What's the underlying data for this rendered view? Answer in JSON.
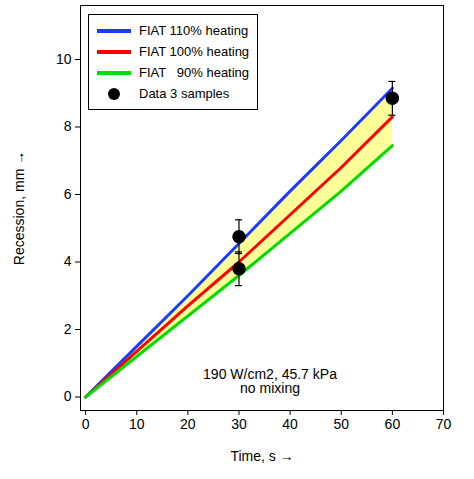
{
  "chart_data": {
    "type": "line",
    "x_label": "Time, s",
    "y_label": "Recession, mm",
    "annotation": [
      "190 W/cm2, 45.7 kPa",
      "no mixing"
    ],
    "x": [
      0,
      10,
      20,
      30,
      40,
      50,
      60
    ],
    "series": [
      {
        "name": "FIAT 110% heating",
        "color": "#1a3cff",
        "values": [
          0,
          1.5,
          3.0,
          4.55,
          6.1,
          7.6,
          9.15
        ]
      },
      {
        "name": "FIAT 100% heating",
        "color": "#ff0000",
        "values": [
          0,
          1.35,
          2.7,
          4.0,
          5.4,
          6.8,
          8.3
        ]
      },
      {
        "name": "FIAT   90% heating",
        "color": "#00dd00",
        "values": [
          0,
          1.2,
          2.4,
          3.6,
          4.85,
          6.1,
          7.45
        ]
      },
      {
        "name": "Data 3 samples",
        "type": "scatter",
        "marker": "circle",
        "color": "#000000",
        "x": [
          30,
          30,
          60
        ],
        "values": [
          4.75,
          3.8,
          8.85
        ],
        "errors": [
          0.5,
          0.5,
          0.5
        ]
      }
    ],
    "band": {
      "color": "#ffff99",
      "between": [
        "FIAT   90% heating",
        "FIAT 110% heating"
      ]
    },
    "xlim": [
      -1,
      70
    ],
    "xticks": [
      0,
      10,
      20,
      30,
      40,
      50,
      60,
      70
    ],
    "ylim": [
      -0.4,
      11.6
    ],
    "yticks": [
      0,
      2,
      4,
      6,
      8,
      10
    ],
    "grid": false,
    "legend": "top-left"
  }
}
